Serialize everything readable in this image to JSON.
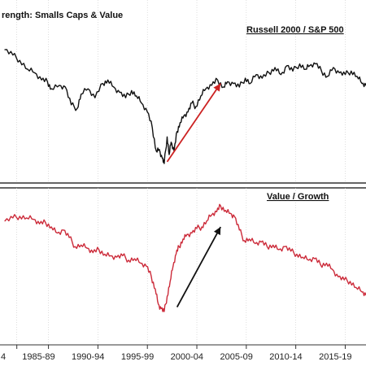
{
  "chart_data": [
    {
      "type": "line",
      "title": "rength: Smalls Caps & Value",
      "series": [
        {
          "name": "Russell 2000 / S&P 500",
          "color": "#111111",
          "x": [
            1983.5,
            1984.3,
            1985.0,
            1985.8,
            1986.5,
            1987.2,
            1987.8,
            1988.2,
            1989.0,
            1989.6,
            1990.2,
            1990.8,
            1991.2,
            1991.9,
            1992.6,
            1993.4,
            1993.9,
            1994.5,
            1995.1,
            1995.7,
            1996.3,
            1996.8,
            1997.3,
            1997.9,
            1998.4,
            1998.8,
            1999.1,
            1999.4,
            1999.6,
            1999.9,
            2000.1,
            2000.3,
            2000.6,
            2000.9,
            2001.2,
            2001.6,
            2002.0,
            2002.4,
            2002.8,
            2003.3,
            2003.8,
            2004.4,
            2005.0,
            2005.6,
            2006.0,
            2006.6,
            2007.2,
            2007.8,
            2008.3,
            2008.9,
            2009.5,
            2010.2,
            2010.8,
            2011.4,
            2012.0,
            2012.6,
            2013.3,
            2013.9,
            2014.3,
            2014.9,
            2015.5,
            2016.1,
            2016.7,
            2017.3,
            2017.9,
            2018.5,
            2019.1,
            2019.6,
            2020.0
          ],
          "values": [
            1.29,
            1.26,
            1.23,
            1.18,
            1.16,
            1.12,
            1.11,
            1.07,
            1.09,
            1.08,
            0.98,
            0.96,
            1.04,
            1.07,
            1.02,
            1.1,
            1.12,
            1.08,
            1.05,
            1.02,
            1.06,
            1.03,
            0.99,
            0.94,
            0.85,
            0.72,
            0.73,
            0.68,
            0.65,
            0.8,
            0.7,
            0.77,
            0.72,
            0.83,
            0.88,
            0.92,
            0.94,
            0.99,
            0.97,
            1.03,
            1.07,
            1.09,
            1.12,
            1.08,
            1.11,
            1.1,
            1.08,
            1.13,
            1.1,
            1.15,
            1.13,
            1.16,
            1.19,
            1.15,
            1.2,
            1.17,
            1.21,
            1.18,
            1.2,
            1.21,
            1.17,
            1.14,
            1.19,
            1.16,
            1.15,
            1.17,
            1.14,
            1.1,
            1.09
          ]
        }
      ],
      "ylim": [
        0.6,
        1.35
      ],
      "arrow": {
        "color": "#cc2222"
      },
      "xlim": [
        1983.0,
        2020.0
      ]
    },
    {
      "type": "line",
      "series": [
        {
          "name": "Value / Growth",
          "color": "#cc2b3a",
          "x": [
            1983.5,
            1984.3,
            1985.0,
            1985.7,
            1986.4,
            1987.0,
            1987.6,
            1988.2,
            1988.8,
            1989.4,
            1990.0,
            1990.6,
            1991.2,
            1991.8,
            1992.4,
            1993.0,
            1993.6,
            1994.2,
            1994.8,
            1995.4,
            1996.0,
            1996.6,
            1997.2,
            1997.8,
            1998.3,
            1998.7,
            1999.0,
            1999.3,
            1999.6,
            1999.9,
            2000.2,
            2000.5,
            2000.8,
            2001.1,
            2001.5,
            2001.9,
            2002.4,
            2002.9,
            2003.4,
            2003.9,
            2004.4,
            2004.9,
            2005.3,
            2005.8,
            2006.3,
            2006.7,
            2007.2,
            2007.7,
            2008.2,
            2008.8,
            2009.4,
            2010.0,
            2010.6,
            2011.2,
            2011.8,
            2012.4,
            2013.0,
            2013.6,
            2014.2,
            2014.8,
            2015.4,
            2016.0,
            2016.6,
            2017.2,
            2017.8,
            2018.4,
            2019.0,
            2019.6,
            2020.0
          ],
          "values": [
            1.3,
            1.32,
            1.33,
            1.32,
            1.31,
            1.28,
            1.29,
            1.26,
            1.22,
            1.24,
            1.19,
            1.13,
            1.14,
            1.12,
            1.09,
            1.11,
            1.08,
            1.07,
            1.06,
            1.07,
            1.04,
            1.05,
            1.02,
            1.0,
            0.93,
            0.85,
            0.75,
            0.72,
            0.7,
            0.8,
            0.9,
            1.0,
            1.08,
            1.13,
            1.18,
            1.21,
            1.22,
            1.25,
            1.26,
            1.3,
            1.34,
            1.36,
            1.4,
            1.37,
            1.35,
            1.33,
            1.24,
            1.17,
            1.18,
            1.15,
            1.16,
            1.13,
            1.14,
            1.11,
            1.13,
            1.1,
            1.08,
            1.06,
            1.04,
            1.05,
            1.01,
            1.02,
            0.98,
            0.93,
            0.91,
            0.9,
            0.86,
            0.83,
            0.81
          ]
        }
      ],
      "ylim": [
        0.62,
        1.47
      ],
      "arrow": {
        "color": "#111111"
      },
      "xlim": [
        1983.0,
        2020.0
      ]
    }
  ],
  "x_ticks": [
    {
      "label": "4",
      "year": 1983.7
    },
    {
      "label": "1985-89",
      "year": 1986.9
    },
    {
      "label": "1990-94",
      "year": 1991.9
    },
    {
      "label": "1995-99",
      "year": 1996.9
    },
    {
      "label": "2000-04",
      "year": 2001.9
    },
    {
      "label": "2005-09",
      "year": 2006.9
    },
    {
      "label": "2010-14",
      "year": 2011.9
    },
    {
      "label": "2015-19",
      "year": 2016.9
    }
  ],
  "colors": {
    "background": "#ffffff",
    "panel_border": "#333333",
    "grid": "#c9c9c9"
  }
}
